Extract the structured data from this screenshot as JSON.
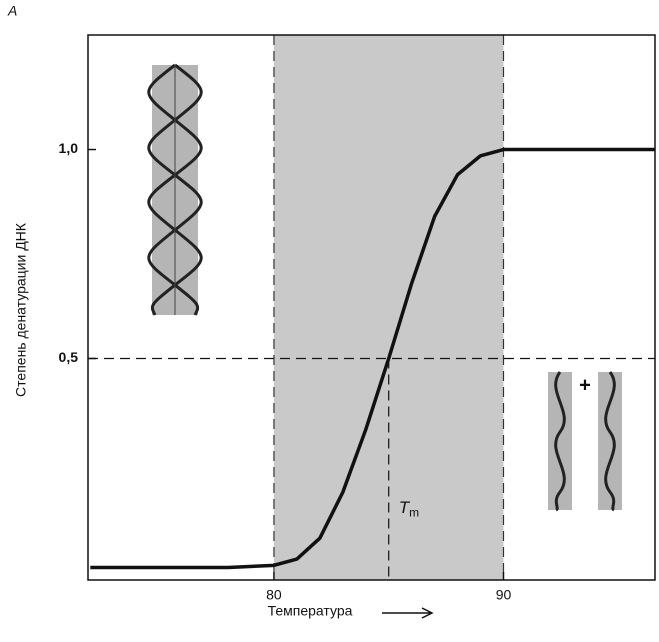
{
  "chart_data": {
    "type": "line",
    "panel_label": "A",
    "xlabel": "Температура",
    "ylabel": "Степень денатурации ДНК",
    "x": [
      72,
      78,
      80,
      81,
      82,
      83,
      84,
      85,
      86,
      87,
      88,
      89,
      90,
      92,
      96.6
    ],
    "series": [
      {
        "name": "denaturation",
        "color": "#111111",
        "values": [
          0,
          0,
          0.005,
          0.02,
          0.07,
          0.18,
          0.33,
          0.5,
          0.68,
          0.84,
          0.94,
          0.985,
          1.0,
          1.0,
          1.0
        ]
      }
    ],
    "xlim": [
      71.9,
      96.6
    ],
    "ylim": [
      -0.03,
      1.274
    ],
    "xticks": [
      80,
      90
    ],
    "yticks": [
      {
        "value": 1.0,
        "label": "1,0"
      },
      {
        "value": 0.5,
        "label": "0,5"
      }
    ],
    "shaded_range": [
      80,
      90
    ],
    "hline": 0.5,
    "vline": 85,
    "annotations": {
      "tm": "T",
      "tm_sub": "m",
      "plus": "+"
    }
  }
}
